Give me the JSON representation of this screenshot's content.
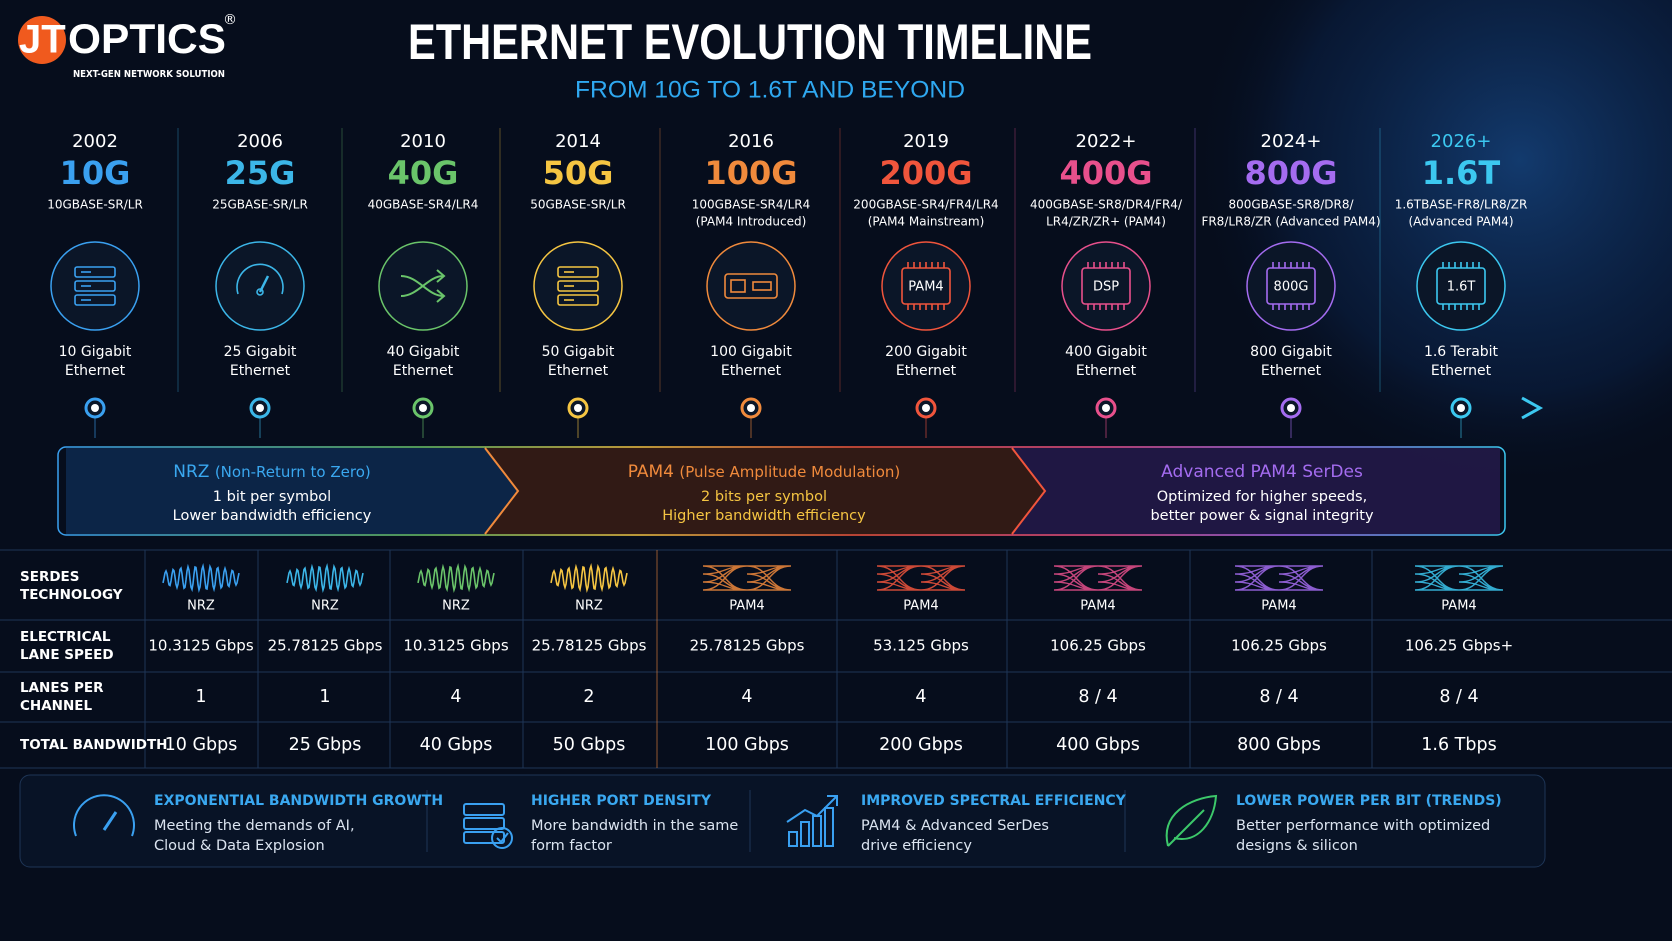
{
  "logo": {
    "accent": "JT",
    "name": "OPTICS",
    "mark": "®",
    "tagline": "NEXT-GEN NETWORK SOLUTION"
  },
  "header": {
    "title": "ETHERNET EVOLUTION TIMELINE",
    "subtitle": "FROM 10G TO 1.6T AND BEYOND"
  },
  "generations": [
    {
      "year": "2002",
      "speed": "10G",
      "standard": [
        "10GBASE-SR/LR"
      ],
      "name": [
        "10 Gigabit",
        "Ethernet"
      ]
    },
    {
      "year": "2006",
      "speed": "25G",
      "standard": [
        "25GBASE-SR/LR"
      ],
      "name": [
        "25 Gigabit",
        "Ethernet"
      ]
    },
    {
      "year": "2010",
      "speed": "40G",
      "standard": [
        "40GBASE-SR4/LR4"
      ],
      "name": [
        "40 Gigabit",
        "Ethernet"
      ]
    },
    {
      "year": "2014",
      "speed": "50G",
      "standard": [
        "50GBASE-SR/LR"
      ],
      "name": [
        "50 Gigabit",
        "Ethernet"
      ]
    },
    {
      "year": "2016",
      "speed": "100G",
      "standard": [
        "100GBASE-SR4/LR4",
        "(PAM4 Introduced)"
      ],
      "name": [
        "100 Gigabit",
        "Ethernet"
      ]
    },
    {
      "year": "2019",
      "speed": "200G",
      "standard": [
        "200GBASE-SR4/FR4/LR4",
        "(PAM4 Mainstream)"
      ],
      "icon_text": "PAM4",
      "name": [
        "200 Gigabit",
        "Ethernet"
      ]
    },
    {
      "year": "2022+",
      "speed": "400G",
      "standard": [
        "400GBASE-SR8/DR4/FR4/",
        "LR4/ZR/ZR+ (PAM4)"
      ],
      "icon_text": "DSP",
      "name": [
        "400 Gigabit",
        "Ethernet"
      ]
    },
    {
      "year": "2024+",
      "speed": "800G",
      "standard": [
        "800GBASE-SR8/DR8/",
        "FR8/LR8/ZR (Advanced PAM4)"
      ],
      "icon_text": "800G",
      "name": [
        "800 Gigabit",
        "Ethernet"
      ]
    },
    {
      "year": "2026+",
      "speed": "1.6T",
      "standard": [
        "1.6TBASE-FR8/LR8/ZR",
        "(Advanced PAM4)"
      ],
      "icon_text": "1.6T",
      "name": [
        "1.6 Terabit",
        "Ethernet"
      ]
    }
  ],
  "modulation": [
    {
      "title": "NRZ",
      "detail": "(Non-Return to Zero)",
      "lines": [
        "1 bit per symbol",
        "Lower bandwidth efficiency"
      ]
    },
    {
      "title": "PAM4",
      "detail": "(Pulse Amplitude Modulation)",
      "lines": [
        "2 bits per symbol",
        "Higher bandwidth efficiency"
      ]
    },
    {
      "title": "Advanced PAM4 SerDes",
      "lines": [
        "Optimized for higher speeds,",
        "better power & signal integrity"
      ]
    }
  ],
  "table": {
    "row_labels": [
      [
        "SERDES",
        "TECHNOLOGY"
      ],
      [
        "ELECTRICAL",
        "LANE SPEED"
      ],
      [
        "LANES PER",
        "CHANNEL"
      ],
      [
        "TOTAL BANDWIDTH"
      ]
    ],
    "rows": [
      [
        "NRZ",
        "NRZ",
        "NRZ",
        "NRZ",
        "PAM4",
        "PAM4",
        "PAM4",
        "PAM4",
        "PAM4"
      ],
      [
        "10.3125 Gbps",
        "25.78125 Gbps",
        "10.3125 Gbps",
        "25.78125 Gbps",
        "25.78125 Gbps",
        "53.125 Gbps",
        "106.25 Gbps",
        "106.25 Gbps",
        "106.25 Gbps+"
      ],
      [
        "1",
        "1",
        "4",
        "2",
        "4",
        "4",
        "8 / 4",
        "8 / 4",
        "8 / 4"
      ],
      [
        "10 Gbps",
        "25 Gbps",
        "40 Gbps",
        "50 Gbps",
        "100 Gbps",
        "200 Gbps",
        "400 Gbps",
        "800 Gbps",
        "1.6 Tbps"
      ]
    ]
  },
  "highlights": [
    {
      "title": "EXPONENTIAL BANDWIDTH GROWTH",
      "lines": [
        "Meeting the demands of AI,",
        "Cloud & Data Explosion"
      ]
    },
    {
      "title": "HIGHER PORT DENSITY",
      "lines": [
        "More bandwidth in the same",
        "form factor"
      ]
    },
    {
      "title": "IMPROVED SPECTRAL EFFICIENCY",
      "lines": [
        "PAM4 & Advanced SerDes",
        "drive efficiency"
      ]
    },
    {
      "title": "LOWER POWER PER BIT (TRENDS)",
      "lines": [
        "Better performance with optimized",
        "designs & silicon"
      ]
    }
  ]
}
